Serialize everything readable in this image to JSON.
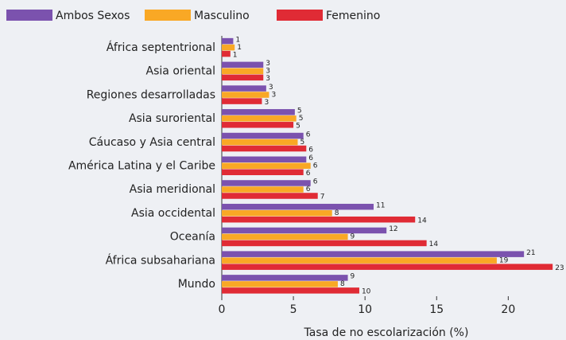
{
  "chart_data": {
    "type": "hbar",
    "x_label": "Tasa de no escolarización (%)",
    "categories": [
      "África septentrional",
      "Asia oriental",
      "Regiones desarrolladas",
      "Asia suroriental",
      "Cáucaso y Asia central",
      "América Latina y el Caribe",
      "Asia meridional",
      "Asia occidental",
      "Oceanía",
      "África subsahariana",
      "Mundo"
    ],
    "series": [
      {
        "name": "Ambos Sexos",
        "color": "#7b52ae",
        "values": [
          0.8,
          2.9,
          3.1,
          5.1,
          5.7,
          5.9,
          6.2,
          10.6,
          11.5,
          21.1,
          8.8
        ],
        "value_labels": [
          "1",
          "3",
          "3",
          "5",
          "6",
          "6",
          "6",
          "11",
          "12",
          "21",
          "9"
        ]
      },
      {
        "name": "Masculino",
        "color": "#f9a825",
        "values": [
          0.9,
          2.9,
          3.3,
          5.2,
          5.3,
          6.2,
          5.7,
          7.7,
          8.8,
          19.2,
          8.1
        ],
        "value_labels": [
          "1",
          "3",
          "3",
          "5",
          "5",
          "6",
          "6",
          "8",
          "9",
          "19",
          "8"
        ]
      },
      {
        "name": "Femenino",
        "color": "#e02b35",
        "values": [
          0.6,
          2.9,
          2.8,
          5.0,
          5.9,
          5.7,
          6.7,
          13.5,
          14.3,
          23.1,
          9.6
        ],
        "value_labels": [
          "1",
          "3",
          "3",
          "5",
          "6",
          "6",
          "7",
          "14",
          "14",
          "23",
          "10"
        ]
      }
    ],
    "xlim": [
      0,
      23.2
    ],
    "xticks": [
      0,
      5,
      10,
      15,
      20
    ]
  }
}
